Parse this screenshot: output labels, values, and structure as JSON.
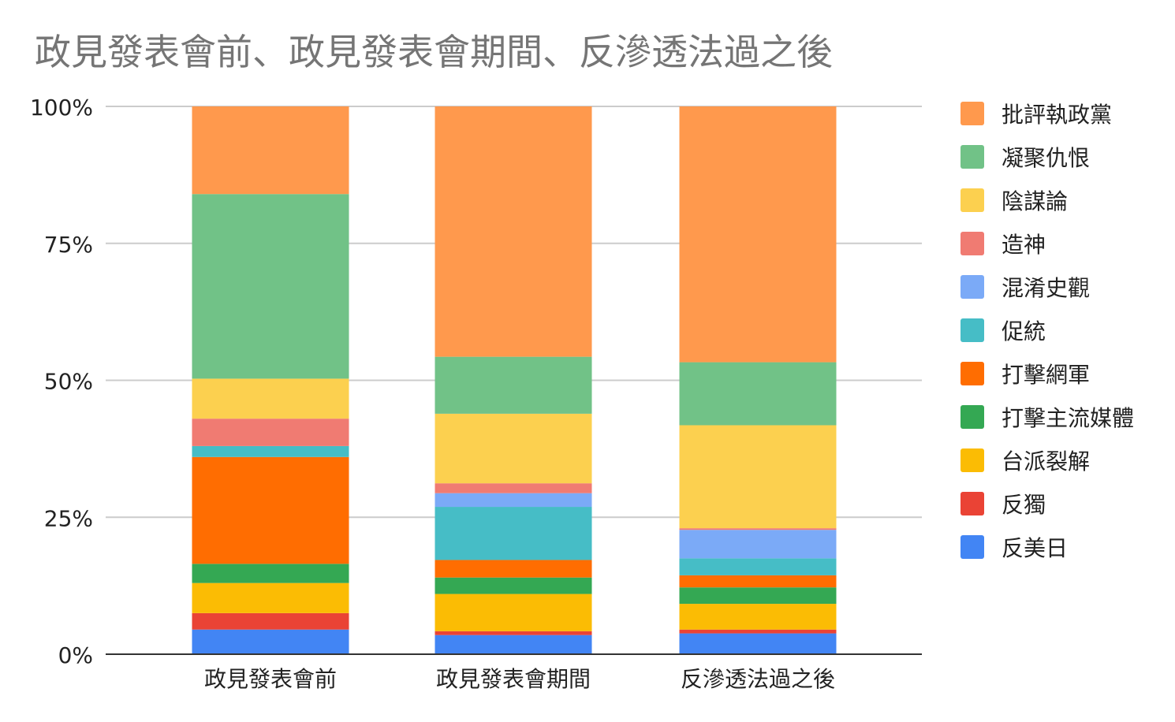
{
  "chart_data": {
    "type": "bar",
    "stacked": true,
    "title": "政見發表會前、政見發表會期間、反滲透法過之後",
    "categories": [
      "政見發表會前",
      "政見發表會期間",
      "反滲透法過之後"
    ],
    "y_tick_labels": [
      "0%",
      "25%",
      "50%",
      "75%",
      "100%"
    ],
    "ylim": [
      0,
      100
    ],
    "grid": true,
    "legend_position": "right",
    "series": [
      {
        "name": "反美日",
        "color": "#4285F4",
        "values": [
          4.5,
          3.5,
          3.8
        ]
      },
      {
        "name": "反獨",
        "color": "#EA4335",
        "values": [
          3.0,
          0.7,
          0.7
        ]
      },
      {
        "name": "台派裂解",
        "color": "#FBBC04",
        "values": [
          5.5,
          6.8,
          4.7
        ]
      },
      {
        "name": "打擊主流媒體",
        "color": "#34A853",
        "values": [
          3.5,
          3.0,
          3.0
        ]
      },
      {
        "name": "打擊網軍",
        "color": "#FF6D01",
        "values": [
          19.5,
          3.2,
          2.2
        ]
      },
      {
        "name": "促統",
        "color": "#46BDC6",
        "values": [
          2.0,
          9.7,
          3.1
        ]
      },
      {
        "name": "混淆史觀",
        "color": "#7BAAF7",
        "values": [
          0,
          2.5,
          5.2
        ]
      },
      {
        "name": "造神",
        "color": "#F07B72",
        "values": [
          5.0,
          1.8,
          0.3
        ]
      },
      {
        "name": "陰謀論",
        "color": "#FCD04F",
        "values": [
          7.3,
          12.7,
          18.8
        ]
      },
      {
        "name": "凝聚仇恨",
        "color": "#71C287",
        "values": [
          33.7,
          10.4,
          11.5
        ]
      },
      {
        "name": "批評執政黨",
        "color": "#FF994D",
        "values": [
          16.0,
          45.7,
          46.7
        ]
      }
    ]
  }
}
